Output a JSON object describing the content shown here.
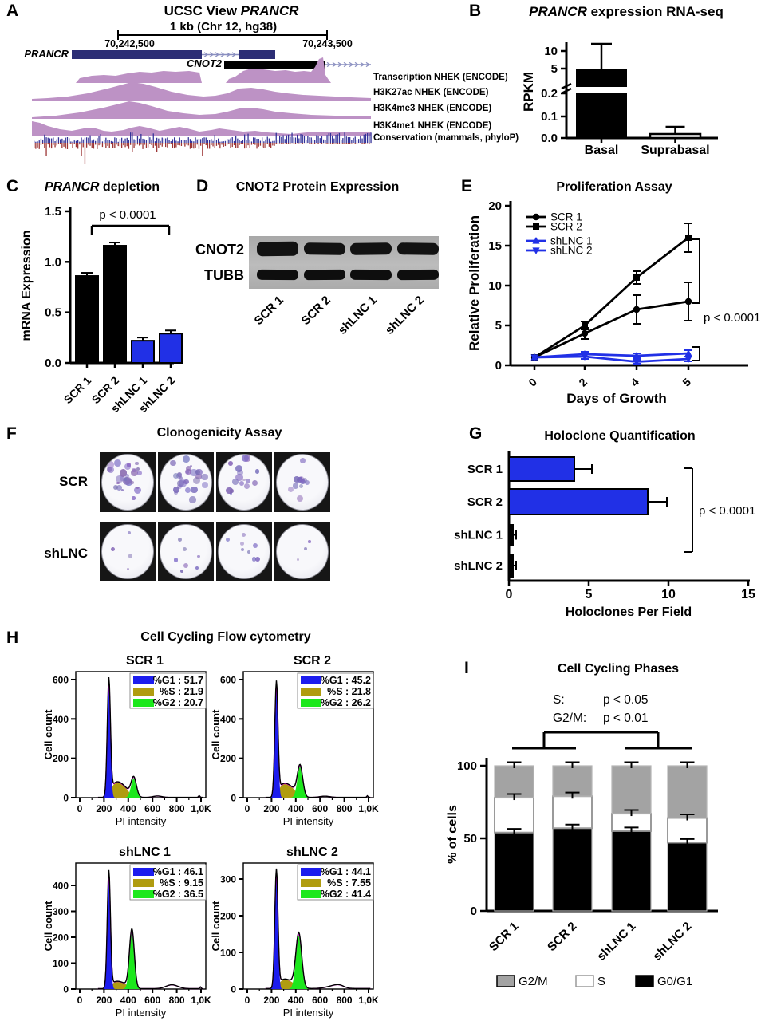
{
  "sections": {
    "A": "A",
    "B": "B",
    "C": "C",
    "D": "D",
    "E": "E",
    "F": "F",
    "G": "G",
    "H": "H",
    "I": "I"
  },
  "panels": {
    "A": {
      "title_plain": "UCSC View ",
      "title_gene": "PRANCR",
      "scale_label": "1 kb (Chr 12, hg38)",
      "coord_left": "70,242,500",
      "coord_right": "70,243,500",
      "gene1": "PRANCR",
      "gene2": "CNOT2",
      "tracks": [
        "Transcription NHEK (ENCODE)",
        "H3K27ac NHEK (ENCODE)",
        "H3K4me3 NHEK (ENCODE)",
        "H3K4me1 NHEK (ENCODE)",
        "Conservation (mammals, phyloP)"
      ]
    },
    "B": {
      "title_italic": "PRANCR",
      "title_rest": " expression RNA-seq"
    },
    "C": {
      "title_italic": "PRANCR",
      "title_rest": " depletion"
    },
    "D": {
      "title": "CNOT2 Protein Expression",
      "band_labels": [
        "CNOT2",
        "TUBB"
      ],
      "lanes": [
        "SCR 1",
        "SCR 2",
        "shLNC 1",
        "shLNC 2"
      ]
    },
    "E": {
      "title": "Proliferation Assay"
    },
    "F": {
      "title": "Clonogenicity Assay",
      "row1_label": "SCR",
      "row2_label": "shLNC"
    },
    "G": {
      "title": "Holoclone Quantification"
    },
    "H": {
      "title": "Cell Cycling Flow cytometry"
    },
    "I": {
      "title": "Cell Cycling Phases"
    }
  },
  "chart_data": [
    {
      "panel": "B",
      "type": "bar",
      "title": "PRANCR expression RNA-seq",
      "ylabel": "RPKM",
      "categories": [
        "Basal",
        "Suprabasal"
      ],
      "values": [
        5.0,
        0.02
      ],
      "error_up": [
        12,
        0.05
      ],
      "axis_break": true,
      "yticks_lower": [
        "0.0",
        "0.1",
        "0.2"
      ],
      "yticks_upper": [
        "5",
        "10"
      ],
      "bar_fill": [
        "#000000",
        "#ffffff"
      ]
    },
    {
      "panel": "C",
      "type": "bar",
      "title": "PRANCR depletion",
      "ylabel": "mRNA Expression",
      "categories": [
        "SCR 1",
        "SCR 2",
        "shLNC 1",
        "shLNC 2"
      ],
      "values": [
        0.86,
        1.16,
        0.22,
        0.29
      ],
      "errors": [
        0.02,
        0.02,
        0.012,
        0.02
      ],
      "yticks": [
        "0.0",
        "0.5",
        "1.0",
        "1.5"
      ],
      "ylim": [
        0,
        1.5
      ],
      "bar_fill": [
        "#000000",
        "#000000",
        "#2130e6",
        "#2130e6"
      ],
      "pvalue": "p < 0.0001"
    },
    {
      "panel": "E",
      "type": "line",
      "title": "Proliferation Assay",
      "xlabel": "Days of Growth",
      "ylabel": "Relative Proliferation",
      "x": [
        0,
        2,
        4,
        5
      ],
      "xticks": [
        "0",
        "2",
        "4",
        "5"
      ],
      "yticks": [
        "0",
        "5",
        "10",
        "15",
        "20"
      ],
      "ylim": [
        0,
        20
      ],
      "series": [
        {
          "name": "SCR 1",
          "color": "#000000",
          "marker": "circle",
          "values": [
            1,
            4,
            7,
            8
          ],
          "errors": [
            0,
            0.7,
            1.8,
            2.4
          ]
        },
        {
          "name": "SCR 2",
          "color": "#000000",
          "marker": "square",
          "values": [
            1,
            5,
            11,
            16
          ],
          "errors": [
            0,
            0.5,
            0.8,
            1.8
          ]
        },
        {
          "name": "shLNC 1",
          "color": "#2130e6",
          "marker": "triangle-up",
          "values": [
            1,
            1.4,
            1.2,
            1.5
          ],
          "errors": [
            0,
            0.3,
            0.3,
            0.4
          ]
        },
        {
          "name": "shLNC 2",
          "color": "#2130e6",
          "marker": "triangle-down",
          "values": [
            1,
            1.1,
            0.45,
            0.8
          ],
          "errors": [
            0,
            0.3,
            0.25,
            0.3
          ]
        }
      ],
      "pvalue": "p < 0.0001"
    },
    {
      "panel": "G",
      "type": "bar-horizontal",
      "title": "Holoclone Quantification",
      "xlabel": "Holoclones Per Field",
      "categories": [
        "SCR 1",
        "SCR 2",
        "shLNC 1",
        "shLNC 2"
      ],
      "values": [
        4.1,
        8.7,
        0.25,
        0.25
      ],
      "errors": [
        1.1,
        1.2,
        0.2,
        0.2
      ],
      "xticks": [
        "0",
        "5",
        "10",
        "15"
      ],
      "xlim": [
        0,
        15
      ],
      "bar_fill": [
        "#2130e6",
        "#2130e6",
        "#000000",
        "#000000"
      ],
      "pvalue": "p < 0.0001"
    },
    {
      "panel": "H",
      "type": "area",
      "title": "Cell Cycling Flow cytometry",
      "xlabel": "PI intensity",
      "ylabel": "Cell count",
      "xticks": [
        "0",
        "200",
        "400",
        "600",
        "800",
        "1,0K"
      ],
      "plots": [
        {
          "name": "SCR 1",
          "yticks": [
            "0",
            "200",
            "400",
            "600"
          ],
          "legend": [
            {
              "label": "%G1",
              "value": "51.7",
              "color": "#1c1cee"
            },
            {
              "label": "%S",
              "value": "21.9",
              "color": "#b09c10"
            },
            {
              "label": "%G2",
              "value": "20.7",
              "color": "#1ce81c"
            }
          ]
        },
        {
          "name": "SCR 2",
          "yticks": [
            "0",
            "200",
            "400",
            "600"
          ],
          "legend": [
            {
              "label": "%G1",
              "value": "45.2",
              "color": "#1c1cee"
            },
            {
              "label": "%S",
              "value": "21.8",
              "color": "#b09c10"
            },
            {
              "label": "%G2",
              "value": "26.2",
              "color": "#1ce81c"
            }
          ]
        },
        {
          "name": "shLNC 1",
          "yticks": [
            "0",
            "100",
            "200",
            "300",
            "400"
          ],
          "legend": [
            {
              "label": "%G1",
              "value": "46.1",
              "color": "#1c1cee"
            },
            {
              "label": "%S",
              "value": "9.15",
              "color": "#b09c10"
            },
            {
              "label": "%G2",
              "value": "36.5",
              "color": "#1ce81c"
            }
          ]
        },
        {
          "name": "shLNC 2",
          "yticks": [
            "0",
            "100",
            "200",
            "300"
          ],
          "legend": [
            {
              "label": "%G1",
              "value": "44.1",
              "color": "#1c1cee"
            },
            {
              "label": "%S",
              "value": "7.55",
              "color": "#b09c10"
            },
            {
              "label": "%G2",
              "value": "41.4",
              "color": "#1ce81c"
            }
          ]
        }
      ]
    },
    {
      "panel": "I",
      "type": "stacked-bar",
      "title": "Cell Cycling Phases",
      "ylabel": "% of cells",
      "categories": [
        "SCR 1",
        "SCR 2",
        "shLNC 1",
        "shLNC 2"
      ],
      "series": [
        {
          "name": "G0/G1",
          "color": "#000000",
          "values": [
            54,
            57,
            55,
            47
          ]
        },
        {
          "name": "S",
          "color": "#ffffff",
          "values": [
            24,
            22,
            12,
            17
          ]
        },
        {
          "name": "G2/M",
          "color": "#a3a3a3",
          "values": [
            22,
            21,
            33,
            36
          ]
        }
      ],
      "errors": 2.5,
      "yticks": [
        "0",
        "50",
        "100"
      ],
      "ylim": [
        0,
        100
      ],
      "annotations": {
        "s_label": "S:",
        "s_p": "p < 0.05",
        "g2m_label": "G2/M:",
        "g2m_p": "p < 0.01"
      },
      "legend": [
        "G2/M",
        "S",
        "G0/G1"
      ]
    }
  ]
}
